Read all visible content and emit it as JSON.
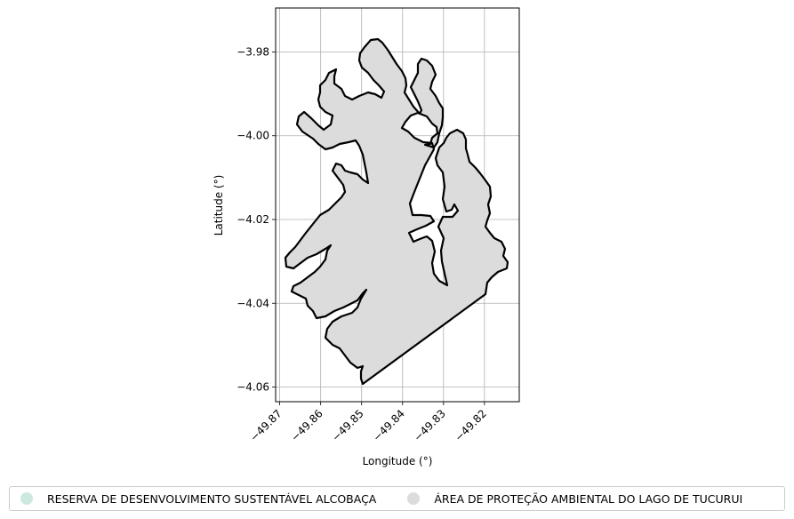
{
  "axes": {
    "xlabel": "Longitude (°)",
    "ylabel": "Latitude (°)",
    "x_ticks": [
      {
        "value": -49.87,
        "label": "−49.87"
      },
      {
        "value": -49.86,
        "label": "−49.86"
      },
      {
        "value": -49.85,
        "label": "−49.85"
      },
      {
        "value": -49.84,
        "label": "−49.84"
      },
      {
        "value": -49.83,
        "label": "−49.83"
      },
      {
        "value": -49.82,
        "label": "−49.82"
      }
    ],
    "y_ticks": [
      {
        "value": -3.98,
        "label": "−3.98"
      },
      {
        "value": -4.0,
        "label": "−4.00"
      },
      {
        "value": -4.02,
        "label": "−4.02"
      },
      {
        "value": -4.04,
        "label": "−4.04"
      },
      {
        "value": -4.06,
        "label": "−4.06"
      }
    ],
    "xlim": [
      -49.871,
      -49.8115
    ],
    "ylim": [
      -4.0635,
      -3.9695
    ],
    "grid": true
  },
  "legend": {
    "placement": "bottom-center",
    "items": [
      {
        "label": "RESERVA DE DESENVOLVIMENTO SUSTENTÁVEL ALCOBAÇA",
        "color": "#cde9df"
      },
      {
        "label": "ÁREA DE PROTEÇÃO AMBIENTAL DO LAGO DE TUCURUI",
        "color": "#dcdcdc"
      }
    ]
  },
  "map": {
    "fill_color": "#dcdcdc",
    "edge_color": "#000000",
    "features": [
      {
        "name": "ÁREA DE PROTEÇÃO AMBIENTAL DO LAGO DE TUCURUI",
        "kind": "polygon"
      }
    ]
  }
}
